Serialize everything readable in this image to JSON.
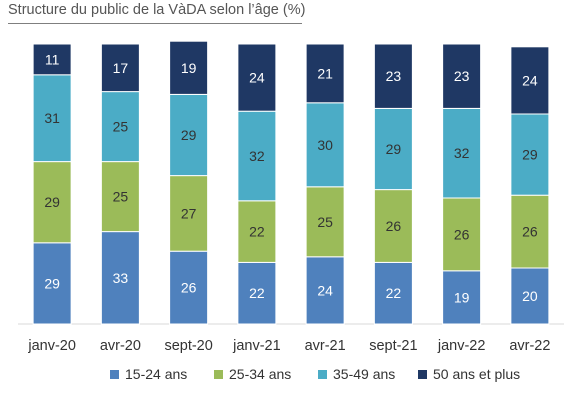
{
  "chart_data": {
    "type": "bar",
    "stacked": true,
    "title": "Structure du public de la VàDA selon l’âge (%)",
    "categories": [
      "janv-20",
      "avr-20",
      "sept-20",
      "janv-21",
      "avr-21",
      "sept-21",
      "janv-22",
      "avr-22"
    ],
    "series": [
      {
        "name": "15-24 ans",
        "color": "#4f81bd",
        "label_color": "#ffffff",
        "values": [
          29,
          33,
          26,
          22,
          24,
          22,
          19,
          20
        ]
      },
      {
        "name": "25-34 ans",
        "color": "#9bbb59",
        "label_color": "#333333",
        "values": [
          29,
          25,
          27,
          22,
          25,
          26,
          26,
          26
        ]
      },
      {
        "name": "35-49 ans",
        "color": "#4bacc6",
        "label_color": "#333333",
        "values": [
          31,
          25,
          29,
          32,
          30,
          29,
          32,
          29
        ]
      },
      {
        "name": "50 ans et plus",
        "color": "#1f3864",
        "label_color": "#ffffff",
        "values": [
          11,
          17,
          19,
          24,
          21,
          23,
          23,
          24
        ]
      }
    ],
    "ylim": [
      0,
      100
    ],
    "grid": false,
    "legend_position": "bottom"
  }
}
